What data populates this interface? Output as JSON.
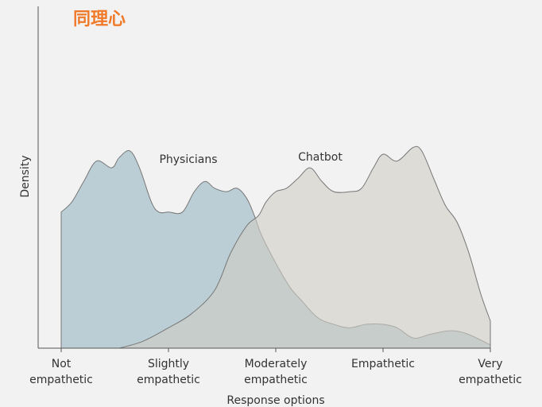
{
  "chart_data": {
    "type": "density",
    "title": "同理心",
    "xlabel": "Response options",
    "ylabel": "Density",
    "xlim": [
      1,
      5
    ],
    "ylim": [
      0,
      1
    ],
    "xticks": [
      {
        "value": 1,
        "label": [
          "Not",
          "empathetic"
        ]
      },
      {
        "value": 2,
        "label": [
          "Slightly",
          "empathetic"
        ]
      },
      {
        "value": 3,
        "label": [
          "Moderately",
          "empathetic"
        ]
      },
      {
        "value": 4,
        "label": [
          "Empathetic"
        ]
      },
      {
        "value": 5,
        "label": [
          "Very",
          "empathetic"
        ]
      }
    ],
    "series": [
      {
        "name": "Physicians",
        "color": "#a9c1cb",
        "x": [
          1.0,
          1.1,
          1.21,
          1.33,
          1.47,
          1.54,
          1.64,
          1.73,
          1.84,
          1.91,
          2.0,
          2.13,
          2.24,
          2.34,
          2.43,
          2.54,
          2.64,
          2.73,
          2.8,
          2.87,
          3.0,
          3.13,
          3.24,
          3.39,
          3.54,
          3.69,
          3.84,
          4.0,
          4.13,
          4.28,
          4.43,
          4.58,
          4.69,
          4.8,
          5.0
        ],
        "values": [
          0.4,
          0.43,
          0.49,
          0.55,
          0.53,
          0.56,
          0.58,
          0.53,
          0.43,
          0.4,
          0.4,
          0.4,
          0.46,
          0.49,
          0.47,
          0.46,
          0.47,
          0.44,
          0.39,
          0.33,
          0.25,
          0.18,
          0.14,
          0.09,
          0.07,
          0.06,
          0.07,
          0.07,
          0.06,
          0.03,
          0.04,
          0.05,
          0.05,
          0.04,
          0.01
        ]
      },
      {
        "name": "Chatbot",
        "color": "#cfcdc5",
        "x": [
          1.54,
          1.76,
          2.0,
          2.21,
          2.43,
          2.58,
          2.73,
          2.84,
          2.91,
          3.0,
          3.1,
          3.21,
          3.32,
          3.43,
          3.54,
          3.69,
          3.8,
          3.91,
          4.0,
          4.13,
          4.28,
          4.36,
          4.47,
          4.58,
          4.69,
          4.8,
          4.91,
          5.0
        ],
        "values": [
          0,
          0.02,
          0.06,
          0.1,
          0.17,
          0.28,
          0.36,
          0.39,
          0.43,
          0.46,
          0.47,
          0.5,
          0.53,
          0.49,
          0.46,
          0.46,
          0.47,
          0.53,
          0.57,
          0.55,
          0.59,
          0.58,
          0.5,
          0.42,
          0.37,
          0.28,
          0.16,
          0.08
        ]
      }
    ]
  }
}
